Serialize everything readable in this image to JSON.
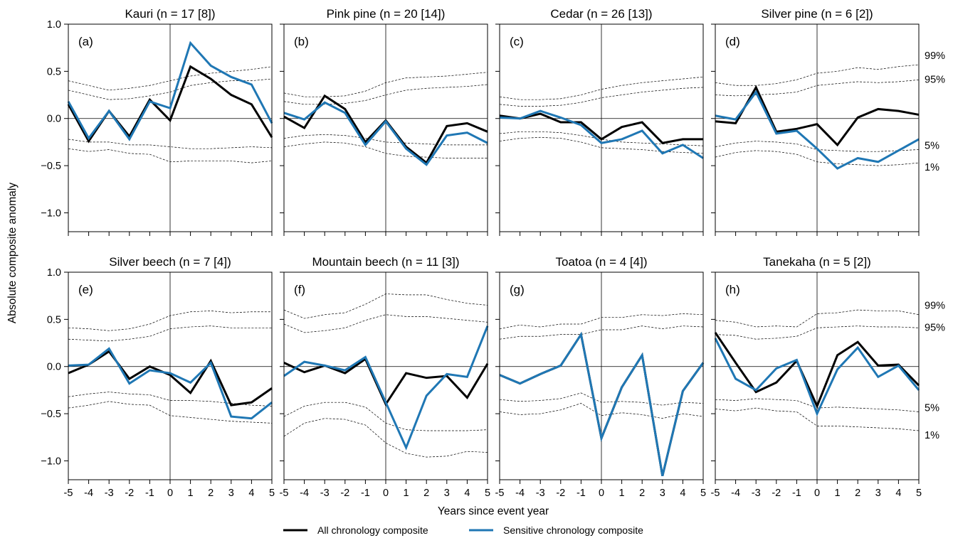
{
  "figure": {
    "ylabel": "Absolute composite anomaly",
    "xlabel": "Years since event year",
    "legend": [
      {
        "label": "All chronology composite",
        "color": "#000000"
      },
      {
        "label": "Sensitive chronology composite",
        "color": "#1f77b4"
      }
    ],
    "percentile_labels": [
      "99%",
      "95%",
      "5%",
      "1%"
    ]
  },
  "chart_data": [
    {
      "type": "line",
      "title": "Kauri (n = 17 [8])",
      "panel_label": "(a)",
      "x": [
        -5,
        -4,
        -3,
        -2,
        -1,
        0,
        1,
        2,
        3,
        4,
        5
      ],
      "ylim": [
        -1.2,
        1.0
      ],
      "xlim": [
        -5,
        5
      ],
      "yticks": [
        -1.0,
        -0.5,
        0.0,
        0.5,
        1.0
      ],
      "yticklabels": [
        "−1.0",
        "−0.5",
        "0.0",
        "0.5",
        "1.0"
      ],
      "xticklabels": [
        "-5",
        "-4",
        "-3",
        "-2",
        "-1",
        "0",
        "1",
        "2",
        "3",
        "4",
        "5"
      ],
      "series": [
        {
          "name": "All chronology composite",
          "color": "#000000",
          "values": [
            0.15,
            -0.24,
            0.08,
            -0.19,
            0.2,
            -0.02,
            0.55,
            0.42,
            0.25,
            0.15,
            -0.2
          ]
        },
        {
          "name": "Sensitive chronology composite",
          "color": "#1f77b4",
          "values": [
            0.18,
            -0.21,
            0.08,
            -0.22,
            0.18,
            0.11,
            0.8,
            0.56,
            0.44,
            0.36,
            -0.05
          ]
        }
      ],
      "threshold_lines": [
        [
          0.4,
          0.35,
          0.3,
          0.32,
          0.35,
          0.4,
          0.45,
          0.48,
          0.5,
          0.52,
          0.55
        ],
        [
          0.3,
          0.25,
          0.2,
          0.21,
          0.24,
          0.28,
          0.35,
          0.38,
          0.4,
          0.4,
          0.42
        ],
        [
          -0.22,
          -0.25,
          -0.25,
          -0.28,
          -0.28,
          -0.3,
          -0.32,
          -0.32,
          -0.31,
          -0.3,
          -0.31
        ],
        [
          -0.32,
          -0.35,
          -0.33,
          -0.37,
          -0.38,
          -0.46,
          -0.45,
          -0.45,
          -0.45,
          -0.47,
          -0.45
        ]
      ]
    },
    {
      "type": "line",
      "title": "Pink pine (n = 20 [14])",
      "panel_label": "(b)",
      "x": [
        -5,
        -4,
        -3,
        -2,
        -1,
        0,
        1,
        2,
        3,
        4,
        5
      ],
      "ylim": [
        -1.2,
        1.0
      ],
      "xlim": [
        -5,
        5
      ],
      "xticklabels": [
        "-5",
        "-4",
        "-3",
        "-2",
        "-1",
        "0",
        "1",
        "2",
        "3",
        "4",
        "5"
      ],
      "series": [
        {
          "name": "All chronology composite",
          "color": "#000000",
          "values": [
            0.02,
            -0.1,
            0.24,
            0.1,
            -0.25,
            -0.02,
            -0.3,
            -0.47,
            -0.08,
            -0.05,
            -0.14
          ]
        },
        {
          "name": "Sensitive chronology composite",
          "color": "#1f77b4",
          "values": [
            0.06,
            -0.01,
            0.17,
            0.06,
            -0.28,
            -0.03,
            -0.32,
            -0.49,
            -0.18,
            -0.15,
            -0.26
          ]
        }
      ],
      "threshold_lines": [
        [
          0.27,
          0.23,
          0.23,
          0.24,
          0.29,
          0.38,
          0.43,
          0.44,
          0.45,
          0.47,
          0.49
        ],
        [
          0.18,
          0.15,
          0.15,
          0.16,
          0.19,
          0.25,
          0.3,
          0.32,
          0.33,
          0.34,
          0.36
        ],
        [
          -0.21,
          -0.18,
          -0.17,
          -0.18,
          -0.21,
          -0.25,
          -0.26,
          -0.27,
          -0.28,
          -0.28,
          -0.28
        ],
        [
          -0.3,
          -0.27,
          -0.25,
          -0.26,
          -0.3,
          -0.37,
          -0.4,
          -0.41,
          -0.42,
          -0.42,
          -0.42
        ]
      ]
    },
    {
      "type": "line",
      "title": "Cedar (n = 26 [13])",
      "panel_label": "(c)",
      "x": [
        -5,
        -4,
        -3,
        -2,
        -1,
        0,
        1,
        2,
        3,
        4,
        5
      ],
      "ylim": [
        -1.2,
        1.0
      ],
      "xlim": [
        -5,
        5
      ],
      "xticklabels": [
        "-5",
        "-4",
        "-3",
        "-2",
        "-1",
        "0",
        "1",
        "2",
        "3",
        "4",
        "5"
      ],
      "series": [
        {
          "name": "All chronology composite",
          "color": "#000000",
          "values": [
            0.03,
            0.0,
            0.05,
            -0.04,
            -0.04,
            -0.22,
            -0.09,
            -0.04,
            -0.26,
            -0.22,
            -0.22
          ]
        },
        {
          "name": "Sensitive chronology composite",
          "color": "#1f77b4",
          "values": [
            0.01,
            0.0,
            0.08,
            0.01,
            -0.07,
            -0.26,
            -0.22,
            -0.13,
            -0.37,
            -0.28,
            -0.42
          ]
        }
      ],
      "threshold_lines": [
        [
          0.23,
          0.2,
          0.2,
          0.21,
          0.25,
          0.31,
          0.35,
          0.38,
          0.4,
          0.42,
          0.44
        ],
        [
          0.15,
          0.13,
          0.13,
          0.14,
          0.17,
          0.22,
          0.25,
          0.28,
          0.3,
          0.32,
          0.33
        ],
        [
          -0.16,
          -0.14,
          -0.14,
          -0.15,
          -0.18,
          -0.22,
          -0.25,
          -0.26,
          -0.27,
          -0.28,
          -0.29
        ],
        [
          -0.24,
          -0.21,
          -0.2,
          -0.21,
          -0.25,
          -0.31,
          -0.32,
          -0.33,
          -0.35,
          -0.36,
          -0.37
        ]
      ]
    },
    {
      "type": "line",
      "title": "Silver pine (n = 6 [2])",
      "panel_label": "(d)",
      "x": [
        -5,
        -4,
        -3,
        -2,
        -1,
        0,
        1,
        2,
        3,
        4,
        5
      ],
      "ylim": [
        -1.2,
        1.0
      ],
      "xlim": [
        -5,
        5
      ],
      "xticklabels": [
        "-5",
        "-4",
        "-3",
        "-2",
        "-1",
        "0",
        "1",
        "2",
        "3",
        "4",
        "5"
      ],
      "series": [
        {
          "name": "All chronology composite",
          "color": "#000000",
          "values": [
            -0.03,
            -0.05,
            0.33,
            -0.14,
            -0.11,
            -0.06,
            -0.28,
            0.01,
            0.1,
            0.08,
            0.04
          ]
        },
        {
          "name": "Sensitive chronology composite",
          "color": "#1f77b4",
          "values": [
            0.03,
            -0.01,
            0.28,
            -0.16,
            -0.13,
            -0.32,
            -0.53,
            -0.42,
            -0.46,
            -0.34,
            -0.22
          ]
        }
      ],
      "threshold_lines": [
        [
          0.38,
          0.35,
          0.35,
          0.37,
          0.41,
          0.48,
          0.5,
          0.54,
          0.52,
          0.55,
          0.57
        ],
        [
          0.25,
          0.24,
          0.25,
          0.26,
          0.28,
          0.35,
          0.37,
          0.39,
          0.38,
          0.39,
          0.41
        ],
        [
          -0.3,
          -0.26,
          -0.24,
          -0.25,
          -0.27,
          -0.33,
          -0.34,
          -0.35,
          -0.35,
          -0.34,
          -0.33
        ],
        [
          -0.41,
          -0.36,
          -0.34,
          -0.35,
          -0.38,
          -0.46,
          -0.48,
          -0.49,
          -0.5,
          -0.49,
          -0.47
        ]
      ],
      "percentile_labels": [
        "99%",
        "95%",
        "5%",
        "1%"
      ]
    },
    {
      "type": "line",
      "title": "Silver beech (n = 7 [4])",
      "panel_label": "(e)",
      "x": [
        -5,
        -4,
        -3,
        -2,
        -1,
        0,
        1,
        2,
        3,
        4,
        5
      ],
      "ylim": [
        -1.2,
        1.0
      ],
      "xlim": [
        -5,
        5
      ],
      "yticks": [
        -1.0,
        -0.5,
        0.0,
        0.5,
        1.0
      ],
      "yticklabels": [
        "−1.0",
        "−0.5",
        "0.0",
        "0.5",
        "1.0"
      ],
      "xticklabels": [
        "-5",
        "-4",
        "-3",
        "-2",
        "-1",
        "0",
        "1",
        "2",
        "3",
        "4",
        "5"
      ],
      "series": [
        {
          "name": "All chronology composite",
          "color": "#000000",
          "values": [
            -0.07,
            0.02,
            0.16,
            -0.13,
            0.0,
            -0.09,
            -0.28,
            0.06,
            -0.41,
            -0.38,
            -0.23
          ]
        },
        {
          "name": "Sensitive chronology composite",
          "color": "#1f77b4",
          "values": [
            0.01,
            0.02,
            0.19,
            -0.18,
            -0.04,
            -0.07,
            -0.17,
            0.04,
            -0.53,
            -0.55,
            -0.38
          ]
        }
      ],
      "threshold_lines": [
        [
          0.41,
          0.4,
          0.38,
          0.4,
          0.45,
          0.54,
          0.58,
          0.59,
          0.57,
          0.58,
          0.58
        ],
        [
          0.29,
          0.28,
          0.27,
          0.29,
          0.32,
          0.4,
          0.42,
          0.43,
          0.41,
          0.41,
          0.41
        ],
        [
          -0.32,
          -0.29,
          -0.27,
          -0.29,
          -0.3,
          -0.36,
          -0.36,
          -0.37,
          -0.39,
          -0.41,
          -0.42
        ],
        [
          -0.44,
          -0.41,
          -0.37,
          -0.4,
          -0.41,
          -0.52,
          -0.54,
          -0.56,
          -0.58,
          -0.59,
          -0.6
        ]
      ]
    },
    {
      "type": "line",
      "title": "Mountain beech (n = 11 [3])",
      "panel_label": "(f)",
      "x": [
        -5,
        -4,
        -3,
        -2,
        -1,
        0,
        1,
        2,
        3,
        4,
        5
      ],
      "ylim": [
        -1.2,
        1.0
      ],
      "xlim": [
        -5,
        5
      ],
      "xticklabels": [
        "-5",
        "-4",
        "-3",
        "-2",
        "-1",
        "0",
        "1",
        "2",
        "3",
        "4",
        "5"
      ],
      "series": [
        {
          "name": "All chronology composite",
          "color": "#000000",
          "values": [
            0.04,
            -0.06,
            0.01,
            -0.07,
            0.08,
            -0.4,
            -0.07,
            -0.12,
            -0.1,
            -0.33,
            0.03
          ]
        },
        {
          "name": "Sensitive chronology composite",
          "color": "#1f77b4",
          "values": [
            -0.1,
            0.05,
            0.01,
            -0.04,
            0.1,
            -0.38,
            -0.86,
            -0.31,
            -0.08,
            -0.11,
            0.43
          ]
        }
      ],
      "threshold_lines": [
        [
          0.6,
          0.51,
          0.55,
          0.57,
          0.66,
          0.77,
          0.76,
          0.76,
          0.71,
          0.67,
          0.65
        ],
        [
          0.45,
          0.36,
          0.38,
          0.41,
          0.49,
          0.55,
          0.53,
          0.53,
          0.51,
          0.49,
          0.47
        ],
        [
          -0.53,
          -0.42,
          -0.38,
          -0.38,
          -0.43,
          -0.6,
          -0.67,
          -0.68,
          -0.68,
          -0.68,
          -0.67
        ],
        [
          -0.74,
          -0.6,
          -0.55,
          -0.56,
          -0.62,
          -0.81,
          -0.92,
          -0.96,
          -0.95,
          -0.9,
          -0.91
        ]
      ]
    },
    {
      "type": "line",
      "title": "Toatoa (n = 4 [4])",
      "panel_label": "(g)",
      "x": [
        -5,
        -4,
        -3,
        -2,
        -1,
        0,
        1,
        2,
        3,
        4,
        5
      ],
      "ylim": [
        -1.2,
        1.0
      ],
      "xlim": [
        -5,
        5
      ],
      "xticklabels": [
        "-5",
        "-4",
        "-3",
        "-2",
        "-1",
        "0",
        "1",
        "2",
        "3",
        "4",
        "5"
      ],
      "series": [
        {
          "name": "All chronology composite",
          "color": "#000000",
          "values": [
            -0.09,
            -0.18,
            -0.08,
            0.01,
            0.34,
            -0.76,
            -0.22,
            0.12,
            -1.16,
            -0.26,
            0.04
          ]
        },
        {
          "name": "Sensitive chronology composite",
          "color": "#1f77b4",
          "values": [
            -0.09,
            -0.18,
            -0.08,
            0.01,
            0.34,
            -0.76,
            -0.22,
            0.12,
            -1.16,
            -0.26,
            0.04
          ]
        }
      ],
      "threshold_lines": [
        [
          0.4,
          0.44,
          0.42,
          0.45,
          0.45,
          0.52,
          0.52,
          0.55,
          0.54,
          0.56,
          0.55
        ],
        [
          0.29,
          0.32,
          0.32,
          0.34,
          0.34,
          0.39,
          0.39,
          0.43,
          0.4,
          0.43,
          0.42
        ],
        [
          -0.35,
          -0.37,
          -0.36,
          -0.34,
          -0.28,
          -0.38,
          -0.37,
          -0.38,
          -0.41,
          -0.38,
          -0.39
        ],
        [
          -0.48,
          -0.51,
          -0.5,
          -0.46,
          -0.39,
          -0.52,
          -0.49,
          -0.51,
          -0.55,
          -0.5,
          -0.53
        ]
      ]
    },
    {
      "type": "line",
      "title": "Tanekaha (n = 5 [2])",
      "panel_label": "(h)",
      "x": [
        -5,
        -4,
        -3,
        -2,
        -1,
        0,
        1,
        2,
        3,
        4,
        5
      ],
      "ylim": [
        -1.2,
        1.0
      ],
      "xlim": [
        -5,
        5
      ],
      "xticklabels": [
        "-5",
        "-4",
        "-3",
        "-2",
        "-1",
        "0",
        "1",
        "2",
        "3",
        "4",
        "5"
      ],
      "series": [
        {
          "name": "All chronology composite",
          "color": "#000000",
          "values": [
            0.36,
            0.04,
            -0.27,
            -0.17,
            0.06,
            -0.42,
            0.12,
            0.26,
            0.01,
            0.02,
            -0.2
          ]
        },
        {
          "name": "Sensitive chronology composite",
          "color": "#1f77b4",
          "values": [
            0.3,
            -0.13,
            -0.25,
            -0.02,
            0.07,
            -0.5,
            -0.03,
            0.2,
            -0.11,
            0.01,
            -0.25
          ]
        }
      ],
      "threshold_lines": [
        [
          0.49,
          0.47,
          0.42,
          0.43,
          0.42,
          0.56,
          0.57,
          0.6,
          0.59,
          0.59,
          0.55
        ],
        [
          0.34,
          0.33,
          0.29,
          0.3,
          0.32,
          0.41,
          0.42,
          0.43,
          0.42,
          0.42,
          0.41
        ],
        [
          -0.35,
          -0.36,
          -0.34,
          -0.35,
          -0.36,
          -0.44,
          -0.43,
          -0.44,
          -0.45,
          -0.46,
          -0.48
        ],
        [
          -0.45,
          -0.47,
          -0.44,
          -0.47,
          -0.48,
          -0.63,
          -0.63,
          -0.64,
          -0.65,
          -0.66,
          -0.68
        ]
      ],
      "percentile_labels": [
        "99%",
        "95%",
        "5%",
        "1%"
      ]
    }
  ]
}
